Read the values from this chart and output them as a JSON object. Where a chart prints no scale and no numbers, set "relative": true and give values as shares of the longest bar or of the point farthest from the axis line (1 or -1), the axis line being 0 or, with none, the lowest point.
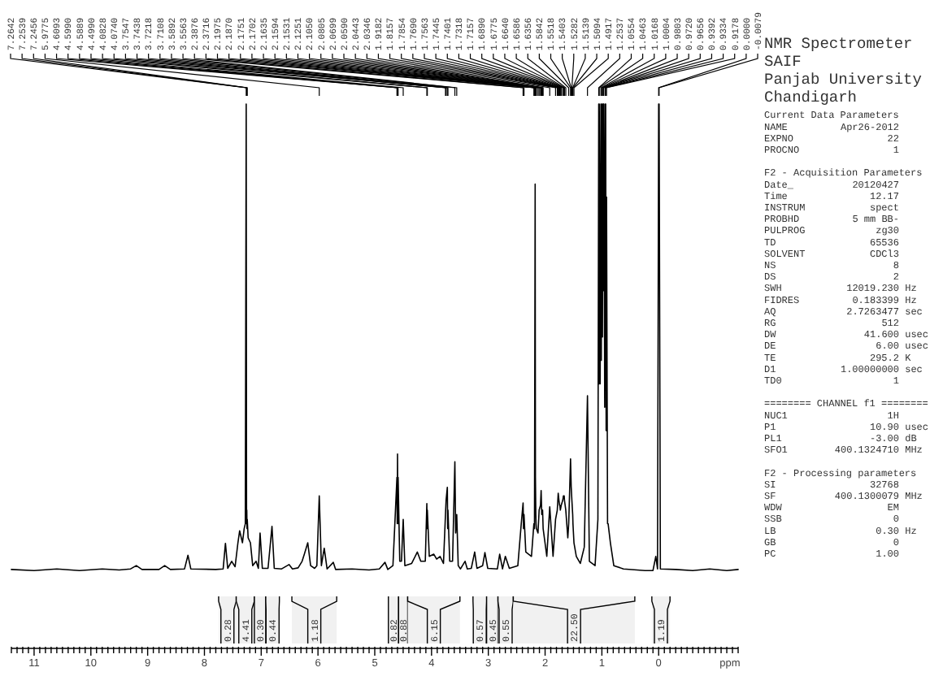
{
  "chart_data": {
    "type": "line",
    "title": "NMR Spectrometer",
    "subtitle": "SAIF\nPanjab University\nChandigarh",
    "xlabel": "ppm",
    "relative": true,
    "xlim": [
      11.4,
      -1.4
    ],
    "xticks": [
      {
        "value": 11.4,
        "label": null
      },
      {
        "value": 11.3,
        "label": null
      },
      {
        "value": 11.2,
        "label": null
      },
      {
        "value": 11.1,
        "label": null
      },
      11,
      {
        "value": 10.9,
        "label": null
      },
      {
        "value": 10.8,
        "label": null
      },
      {
        "value": 10.7,
        "label": null
      },
      {
        "value": 10.6,
        "label": null
      },
      {
        "value": 10.5,
        "label": null
      },
      {
        "value": 10.4,
        "label": null
      },
      {
        "value": 10.3,
        "label": null
      },
      {
        "value": 10.2,
        "label": null
      },
      {
        "value": 10.1,
        "label": null
      },
      10,
      {
        "value": 9.9,
        "label": null
      },
      {
        "value": 9.8,
        "label": null
      },
      {
        "value": 9.7,
        "label": null
      },
      {
        "value": 9.6,
        "label": null
      },
      {
        "value": 9.5,
        "label": null
      },
      {
        "value": 9.4,
        "label": null
      },
      {
        "value": 9.3,
        "label": null
      },
      {
        "value": 9.2,
        "label": null
      },
      {
        "value": 9.1,
        "label": null
      },
      9,
      {
        "value": 8.9,
        "label": null
      },
      {
        "value": 8.8,
        "label": null
      },
      {
        "value": 8.7,
        "label": null
      },
      {
        "value": 8.6,
        "label": null
      },
      {
        "value": 8.5,
        "label": null
      },
      {
        "value": 8.4,
        "label": null
      },
      {
        "value": 8.3,
        "label": null
      },
      {
        "value": 8.2,
        "label": null
      },
      {
        "value": 8.1,
        "label": null
      },
      8,
      {
        "value": 7.9,
        "label": null
      },
      {
        "value": 7.8,
        "label": null
      },
      {
        "value": 7.7,
        "label": null
      },
      {
        "value": 7.6,
        "label": null
      },
      {
        "value": 7.5,
        "label": null
      },
      {
        "value": 7.4,
        "label": null
      },
      {
        "value": 7.3,
        "label": null
      },
      {
        "value": 7.2,
        "label": null
      },
      {
        "value": 7.1,
        "label": null
      },
      7,
      {
        "value": 6.9,
        "label": null
      },
      {
        "value": 6.8,
        "label": null
      },
      {
        "value": 6.7,
        "label": null
      },
      {
        "value": 6.6,
        "label": null
      },
      {
        "value": 6.5,
        "label": null
      },
      {
        "value": 6.4,
        "label": null
      },
      {
        "value": 6.3,
        "label": null
      },
      {
        "value": 6.2,
        "label": null
      },
      {
        "value": 6.1,
        "label": null
      },
      6,
      {
        "value": 5.9,
        "label": null
      },
      {
        "value": 5.8,
        "label": null
      },
      {
        "value": 5.7,
        "label": null
      },
      {
        "value": 5.6,
        "label": null
      },
      {
        "value": 5.5,
        "label": null
      },
      {
        "value": 5.4,
        "label": null
      },
      {
        "value": 5.3,
        "label": null
      },
      {
        "value": 5.2,
        "label": null
      },
      {
        "value": 5.1,
        "label": null
      },
      5,
      {
        "value": 4.9,
        "label": null
      },
      {
        "value": 4.8,
        "label": null
      },
      {
        "value": 4.7,
        "label": null
      },
      {
        "value": 4.6,
        "label": null
      },
      {
        "value": 4.5,
        "label": null
      },
      {
        "value": 4.4,
        "label": null
      },
      {
        "value": 4.3,
        "label": null
      },
      {
        "value": 4.2,
        "label": null
      },
      {
        "value": 4.1,
        "label": null
      },
      4,
      {
        "value": 3.9,
        "label": null
      },
      {
        "value": 3.8,
        "label": null
      },
      {
        "value": 3.7,
        "label": null
      },
      {
        "value": 3.6,
        "label": null
      },
      {
        "value": 3.5,
        "label": null
      },
      {
        "value": 3.4,
        "label": null
      },
      {
        "value": 3.3,
        "label": null
      },
      {
        "value": 3.2,
        "label": null
      },
      {
        "value": 3.1,
        "label": null
      },
      3,
      {
        "value": 2.9,
        "label": null
      },
      {
        "value": 2.8,
        "label": null
      },
      {
        "value": 2.7,
        "label": null
      },
      {
        "value": 2.6,
        "label": null
      },
      {
        "value": 2.5,
        "label": null
      },
      {
        "value": 2.4,
        "label": null
      },
      {
        "value": 2.3,
        "label": null
      },
      {
        "value": 2.2,
        "label": null
      },
      {
        "value": 2.1,
        "label": null
      },
      2,
      {
        "value": 1.9,
        "label": null
      },
      {
        "value": 1.8,
        "label": null
      },
      {
        "value": 1.7,
        "label": null
      },
      {
        "value": 1.6,
        "label": null
      },
      {
        "value": 1.5,
        "label": null
      },
      {
        "value": 1.4,
        "label": null
      },
      {
        "value": 1.3,
        "label": null
      },
      {
        "value": 1.2,
        "label": null
      },
      {
        "value": 1.1,
        "label": null
      },
      1,
      {
        "value": 0.9,
        "label": null
      },
      {
        "value": 0.8,
        "label": null
      },
      {
        "value": 0.7,
        "label": null
      },
      {
        "value": 0.6,
        "label": null
      },
      {
        "value": 0.5,
        "label": null
      },
      {
        "value": 0.4,
        "label": null
      },
      {
        "value": 0.3,
        "label": null
      },
      {
        "value": 0.2,
        "label": null
      },
      {
        "value": 0.1,
        "label": null
      },
      0,
      {
        "value": -0.1,
        "label": null
      },
      {
        "value": -0.2,
        "label": null
      },
      {
        "value": -0.3,
        "label": null
      },
      {
        "value": -0.4,
        "label": null
      },
      {
        "value": -0.5,
        "label": null
      },
      {
        "value": -0.6,
        "label": null
      },
      {
        "value": -0.7,
        "label": null
      },
      {
        "value": -0.8,
        "label": null
      },
      {
        "value": -0.9,
        "label": null
      },
      {
        "value": -1,
        "label": null
      },
      {
        "value": -1.1,
        "label": null
      },
      {
        "value": -1.2,
        "label": null
      },
      {
        "value": -1.3,
        "label": null
      },
      {
        "value": -1.4,
        "label": null
      }
    ],
    "x": [
      11.4,
      11.0,
      10.6,
      10.2,
      9.8,
      9.5,
      9.3,
      9.2,
      9.1,
      8.8,
      8.7,
      8.6,
      8.35,
      8.29,
      8.24,
      7.8,
      7.67,
      7.63,
      7.59,
      7.52,
      7.46,
      7.41,
      7.38,
      7.33,
      7.3,
      7.28,
      7.2642,
      7.258,
      7.2539,
      7.25,
      7.2456,
      7.23,
      7.19,
      7.15,
      7.09,
      7.05,
      7.02,
      6.98,
      6.88,
      6.81,
      6.77,
      6.64,
      6.51,
      6.45,
      6.35,
      6.28,
      6.24,
      6.18,
      6.13,
      6.06,
      6.02,
      5.9775,
      5.94,
      5.89,
      5.84,
      5.73,
      5.69,
      5.4,
      5.1,
      4.92,
      4.82,
      4.77,
      4.68,
      4.6093,
      4.604,
      4.599,
      4.594,
      4.5889,
      4.56,
      4.53,
      4.499,
      4.47,
      4.35,
      4.25,
      4.19,
      4.11,
      4.0828,
      4.078,
      4.074,
      4.04,
      3.96,
      3.91,
      3.85,
      3.79,
      3.7547,
      3.7438,
      3.7218,
      3.716,
      3.7108,
      3.68,
      3.63,
      3.5892,
      3.575,
      3.5563,
      3.53,
      3.49,
      3.41,
      3.37,
      3.3,
      3.24,
      3.2,
      3.1,
      3.06,
      3.01,
      2.84,
      2.8,
      2.75,
      2.7,
      2.63,
      2.48,
      2.42,
      2.3876,
      2.38,
      2.3716,
      2.34,
      2.24,
      2.1975,
      2.187,
      2.1751,
      2.1702,
      2.1635,
      2.1594,
      2.1531,
      2.1251,
      2.105,
      2.0805,
      2.0699,
      2.059,
      2.0443,
      2.0346,
      1.97,
      1.9182,
      1.86,
      1.8157,
      1.7854,
      1.769,
      1.7563,
      1.7445,
      1.7401,
      1.7318,
      1.7157,
      1.689,
      1.6775,
      1.664,
      1.6586,
      1.6356,
      1.6,
      1.5842,
      1.5518,
      1.5403,
      1.5282,
      1.5139,
      1.5094,
      1.4917,
      1.45,
      1.38,
      1.31,
      1.2537,
      1.22,
      1.12,
      1.07,
      1.0554,
      1.05,
      1.0463,
      1.03,
      1.0168,
      1.01,
      1.0004,
      0.99,
      0.9803,
      0.976,
      0.972,
      0.969,
      0.9656,
      0.95,
      0.9392,
      0.936,
      0.9334,
      0.925,
      0.9178,
      0.9,
      0.89,
      0.85,
      0.79,
      0.62,
      0.24,
      0.1,
      0.05,
      0.02,
      0.0,
      -0.0079,
      -0.03,
      -0.3,
      -0.6,
      -0.9,
      -1.2,
      -1.4
    ],
    "series": [
      {
        "color": "#000000",
        "values": [
          0.145,
          0.143,
          0.146,
          0.143,
          0.146,
          0.144,
          0.146,
          0.152,
          0.145,
          0.145,
          0.152,
          0.145,
          0.146,
          0.171,
          0.146,
          0.145,
          0.146,
          0.193,
          0.147,
          0.16,
          0.15,
          0.194,
          0.216,
          0.194,
          0.22,
          0.229,
          1.0,
          0.229,
          0.254,
          0.22,
          0.237,
          0.203,
          0.194,
          0.152,
          0.16,
          0.147,
          0.212,
          0.147,
          0.147,
          0.224,
          0.147,
          0.146,
          0.154,
          0.146,
          0.148,
          0.16,
          0.173,
          0.194,
          0.152,
          0.147,
          0.152,
          0.28,
          0.152,
          0.184,
          0.146,
          0.158,
          0.145,
          0.146,
          0.144,
          0.146,
          0.158,
          0.145,
          0.152,
          0.314,
          0.229,
          0.357,
          0.229,
          0.314,
          0.16,
          0.16,
          0.237,
          0.152,
          0.156,
          0.177,
          0.16,
          0.16,
          0.266,
          0.22,
          0.254,
          0.169,
          0.173,
          0.164,
          0.169,
          0.156,
          0.246,
          0.272,
          0.296,
          0.22,
          0.254,
          0.16,
          0.16,
          0.343,
          0.212,
          0.246,
          0.152,
          0.146,
          0.16,
          0.146,
          0.147,
          0.177,
          0.147,
          0.152,
          0.176,
          0.147,
          0.146,
          0.173,
          0.146,
          0.169,
          0.147,
          0.152,
          0.229,
          0.267,
          0.22,
          0.246,
          0.177,
          0.169,
          0.229,
          0.22,
          0.853,
          0.314,
          0.246,
          0.229,
          0.22,
          0.212,
          0.254,
          0.263,
          0.29,
          0.246,
          0.254,
          0.22,
          0.169,
          0.26,
          0.169,
          0.237,
          0.254,
          0.285,
          0.272,
          0.263,
          0.263,
          0.254,
          0.263,
          0.272,
          0.28,
          0.28,
          0.272,
          0.254,
          0.203,
          0.229,
          0.348,
          0.297,
          0.272,
          0.246,
          0.229,
          0.194,
          0.169,
          0.156,
          0.186,
          0.464,
          0.16,
          0.152,
          0.237,
          1.0,
          0.486,
          1.0,
          0.486,
          1.0,
          0.529,
          1.0,
          0.572,
          1.0,
          0.657,
          1.0,
          0.657,
          1.0,
          0.443,
          1.0,
          0.657,
          1.0,
          0.4,
          0.829,
          0.229,
          0.229,
          0.194,
          0.152,
          0.146,
          0.143,
          0.143,
          0.169,
          0.146,
          1.0,
          1.0,
          0.146,
          0.145,
          0.143,
          0.146,
          0.143,
          0.145
        ]
      }
    ],
    "bands": [
      {
        "axis": "x",
        "from": 7.75,
        "to": 7.44,
        "label": "0.28"
      },
      {
        "axis": "x",
        "from": 7.44,
        "to": 7.12,
        "label": "4.41"
      },
      {
        "axis": "x",
        "from": 7.12,
        "to": 6.92,
        "label": "0.30"
      },
      {
        "axis": "x",
        "from": 6.92,
        "to": 6.68,
        "label": "0.44"
      },
      {
        "axis": "x",
        "from": 6.46,
        "to": 5.67,
        "label": "1.18"
      },
      {
        "axis": "x",
        "from": 4.76,
        "to": 4.58,
        "label": "0.82"
      },
      {
        "axis": "x",
        "from": 4.58,
        "to": 4.42,
        "label": "0.88"
      },
      {
        "axis": "x",
        "from": 4.42,
        "to": 3.5,
        "label": "6.15"
      },
      {
        "axis": "x",
        "from": 3.27,
        "to": 3.03,
        "label": "0.57"
      },
      {
        "axis": "x",
        "from": 3.03,
        "to": 2.83,
        "label": "0.45"
      },
      {
        "axis": "x",
        "from": 2.83,
        "to": 2.56,
        "label": "0.55"
      },
      {
        "axis": "x",
        "from": 2.56,
        "to": 0.42,
        "label": "22.50"
      },
      {
        "axis": "x",
        "from": 0.12,
        "to": -0.2,
        "label": "1.19"
      }
    ],
    "annotations": [
      {
        "text": "7.2642",
        "x": 7.2642
      },
      {
        "text": "7.2539",
        "x": 7.2539
      },
      {
        "text": "7.2456",
        "x": 7.2456
      },
      {
        "text": "5.9775",
        "x": 5.9775
      },
      {
        "text": "4.6093",
        "x": 4.6093
      },
      {
        "text": "4.5990",
        "x": 4.599
      },
      {
        "text": "4.5889",
        "x": 4.5889
      },
      {
        "text": "4.4990",
        "x": 4.499
      },
      {
        "text": "4.0828",
        "x": 4.0828
      },
      {
        "text": "4.0740",
        "x": 4.074
      },
      {
        "text": "3.7547",
        "x": 3.7547
      },
      {
        "text": "3.7438",
        "x": 3.7438
      },
      {
        "text": "3.7218",
        "x": 3.7218
      },
      {
        "text": "3.7108",
        "x": 3.7108
      },
      {
        "text": "3.5892",
        "x": 3.5892
      },
      {
        "text": "3.5563",
        "x": 3.5563
      },
      {
        "text": "2.3876",
        "x": 2.3876
      },
      {
        "text": "2.3716",
        "x": 2.3716
      },
      {
        "text": "2.1975",
        "x": 2.1975
      },
      {
        "text": "2.1870",
        "x": 2.187
      },
      {
        "text": "2.1751",
        "x": 2.1751
      },
      {
        "text": "2.1702",
        "x": 2.1702
      },
      {
        "text": "2.1635",
        "x": 2.1635
      },
      {
        "text": "2.1594",
        "x": 2.1594
      },
      {
        "text": "2.1531",
        "x": 2.1531
      },
      {
        "text": "2.1251",
        "x": 2.1251
      },
      {
        "text": "2.1050",
        "x": 2.105
      },
      {
        "text": "2.0805",
        "x": 2.0805
      },
      {
        "text": "2.0699",
        "x": 2.0699
      },
      {
        "text": "2.0590",
        "x": 2.059
      },
      {
        "text": "2.0443",
        "x": 2.0443
      },
      {
        "text": "2.0346",
        "x": 2.0346
      },
      {
        "text": "1.9182",
        "x": 1.9182
      },
      {
        "text": "1.8157",
        "x": 1.8157
      },
      {
        "text": "1.7854",
        "x": 1.7854
      },
      {
        "text": "1.7690",
        "x": 1.769
      },
      {
        "text": "1.7563",
        "x": 1.7563
      },
      {
        "text": "1.7445",
        "x": 1.7445
      },
      {
        "text": "1.7401",
        "x": 1.7401
      },
      {
        "text": "1.7318",
        "x": 1.7318
      },
      {
        "text": "1.7157",
        "x": 1.7157
      },
      {
        "text": "1.6890",
        "x": 1.689
      },
      {
        "text": "1.6775",
        "x": 1.6775
      },
      {
        "text": "1.6640",
        "x": 1.664
      },
      {
        "text": "1.6586",
        "x": 1.6586
      },
      {
        "text": "1.6356",
        "x": 1.6356
      },
      {
        "text": "1.5842",
        "x": 1.5842
      },
      {
        "text": "1.5518",
        "x": 1.5518
      },
      {
        "text": "1.5403",
        "x": 1.5403
      },
      {
        "text": "1.5282",
        "x": 1.5282
      },
      {
        "text": "1.5139",
        "x": 1.5139
      },
      {
        "text": "1.5094",
        "x": 1.5094
      },
      {
        "text": "1.4917",
        "x": 1.4917
      },
      {
        "text": "1.2537",
        "x": 1.2537
      },
      {
        "text": "1.0554",
        "x": 1.0554
      },
      {
        "text": "1.0463",
        "x": 1.0463
      },
      {
        "text": "1.0168",
        "x": 1.0168
      },
      {
        "text": "1.0004",
        "x": 1.0004
      },
      {
        "text": "0.9803",
        "x": 0.9803
      },
      {
        "text": "0.9720",
        "x": 0.972
      },
      {
        "text": "0.9656",
        "x": 0.9656
      },
      {
        "text": "0.9392",
        "x": 0.9392
      },
      {
        "text": "0.9334",
        "x": 0.9334
      },
      {
        "text": "0.9178",
        "x": 0.9178
      },
      {
        "text": "0.0000",
        "x": 0.0
      },
      {
        "text": "-0.0079",
        "x": -0.0079
      },
      "Current Data Parameters",
      "NAME\tApr26-2012",
      "EXPNO\t22",
      "PROCNO\t1",
      "F2 - Acquisition Parameters",
      "Date_\t20120427",
      "Time\t12.17",
      "INSTRUM\tspect",
      "PROBHD\t5 mm BB-",
      "PULPROG\tzg30",
      "TD\t65536",
      "SOLVENT\tCDCl3",
      "NS\t8",
      "DS\t2",
      "SWH\t12019.230\tHz",
      "FIDRES\t0.183399\tHz",
      "AQ\t2.7263477\tsec",
      "RG\t512",
      "DW\t41.600\tusec",
      "DE\t6.00\tusec",
      "TE\t295.2\tK",
      "D1\t1.00000000\tsec",
      "TD0\t1",
      "======== CHANNEL f1 ========",
      "NUC1\t1H",
      "P1\t10.90\tusec",
      "PL1\t-3.00\tdB",
      "SFO1\t400.1324710\tMHz",
      "F2 - Processing parameters",
      "SI\t32768",
      "SF\t400.1300079\tMHz",
      "WDW\tEM",
      "SSB\t0",
      "LB\t0.30\tHz",
      "GB\t0",
      "PC\t1.00"
    ]
  }
}
